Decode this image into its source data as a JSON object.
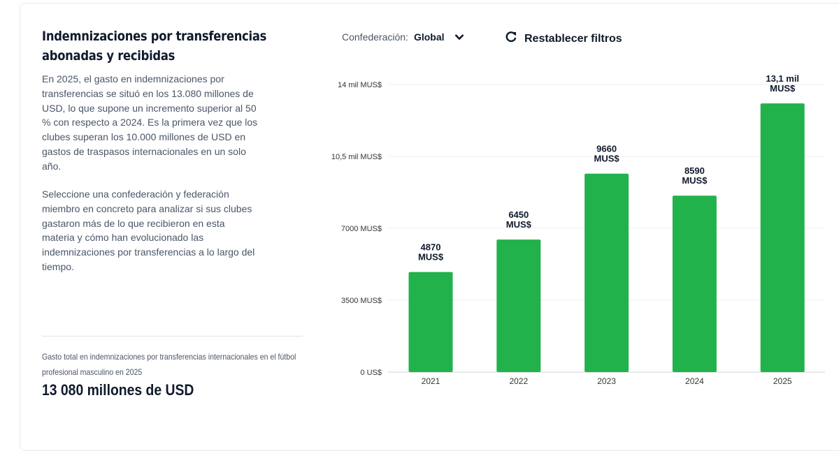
{
  "panel": {
    "title": "Indemnizaciones por transferencias abonadas y recibidas",
    "paragraph1": "En 2025, el gasto en indemnizaciones por transferencias se situó en los 13.080 millones de USD, lo que supone un incremento superior al 50 % con respecto a 2024. Es la primera vez que los clubes superan los 10.000 millones de USD en gastos de traspasos internacionales en un solo año.",
    "paragraph2": "Seleccione una confederación y federación miembro en concreto para analizar si sus clubes gastaron más de lo que recibieron en esta materia y cómo han evolucionado las indemnizaciones por transferencias a lo largo del tiempo.",
    "kpi_label": "Gasto total en indemnizaciones por transferencias internacionales en el fútbol profesional masculino en 2025",
    "kpi_value": "13 080 millones de USD"
  },
  "filters": {
    "confederation_label": "Confederación:",
    "confederation_value": "Global",
    "confederation_icon": "chevron-down-icon",
    "reset_label": "Restablecer filtros",
    "reset_icon": "refresh-icon"
  },
  "chart_data": {
    "type": "bar",
    "categories": [
      "2021",
      "2022",
      "2023",
      "2024",
      "2025"
    ],
    "values": [
      4870,
      6450,
      9660,
      8590,
      13080
    ],
    "data_labels": [
      [
        "4870",
        "MUS$"
      ],
      [
        "6450",
        "MUS$"
      ],
      [
        "9660",
        "MUS$"
      ],
      [
        "8590",
        "MUS$"
      ],
      [
        "13,1 mil",
        "MUS$"
      ]
    ],
    "yticks": [
      0,
      3500,
      7000,
      10500,
      14000
    ],
    "ytick_labels": [
      "0 US$",
      "3500 MUS$",
      "7000 MUS$",
      "10,5 mil MUS$",
      "14 mil MUS$"
    ],
    "ylim": [
      0,
      14000
    ],
    "grid": true,
    "bar_color": "#22b24c"
  }
}
